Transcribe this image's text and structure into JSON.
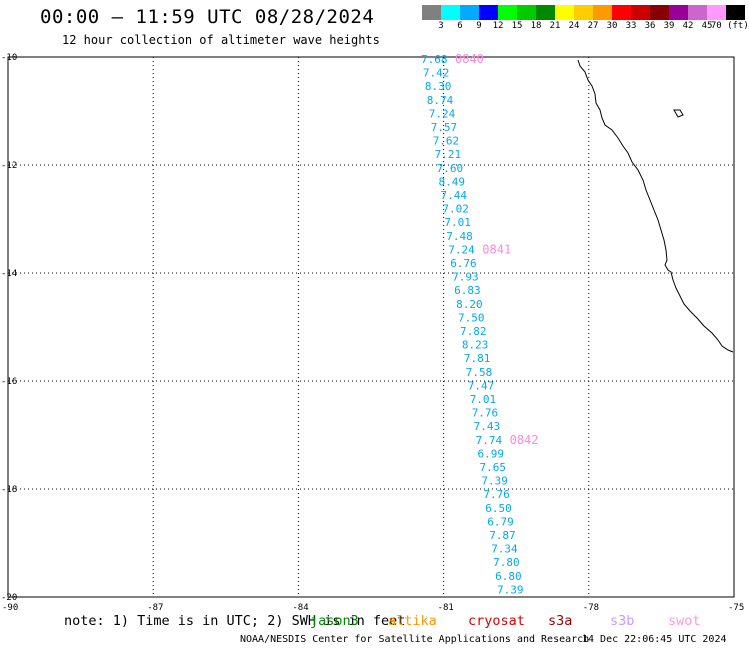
{
  "header": {
    "title": "00:00 – 11:59 UTC 08/28/2024",
    "subtitle": "12 hour collection of altimeter wave heights"
  },
  "legend": {
    "colors": [
      "#808080",
      "#00ffff",
      "#00aaff",
      "#0000ff",
      "#00ff00",
      "#00cc00",
      "#008800",
      "#ffff00",
      "#ffcc00",
      "#ff9900",
      "#ff0000",
      "#cc0000",
      "#880000",
      "#990099",
      "#cc66cc",
      "#ff99ff",
      "#000000"
    ],
    "labels": [
      "3",
      "6",
      "9",
      "12",
      "15",
      "18",
      "21",
      "24",
      "27",
      "30",
      "33",
      "36",
      "39",
      "42",
      "45",
      "70 (ft)"
    ]
  },
  "map": {
    "lon_range": [
      -90,
      -75
    ],
    "lat_range": [
      -20,
      -10
    ],
    "x_ticks": [
      "-90",
      "-87",
      "-84",
      "-81",
      "-78",
      "-75"
    ],
    "y_ticks": [
      "-10",
      "-12",
      "-14",
      "-16",
      "-18",
      "-20"
    ],
    "value_color": "#00aaee",
    "pass_color": "#ff88dd",
    "wave_heights": [
      "7.68",
      "7.42",
      "8.30",
      "8.74",
      "7.24",
      "7.57",
      "7.62",
      "7.21",
      "7.60",
      "8.49",
      "7.44",
      "7.02",
      "7.01",
      "7.48",
      "7.24",
      "6.76",
      "7.93",
      "6.83",
      "8.20",
      "7.50",
      "7.82",
      "8.23",
      "7.81",
      "7.58",
      "7.47",
      "7.01",
      "7.76",
      "7.43",
      "7.74",
      "6.99",
      "7.65",
      "7.39",
      "7.76",
      "6.50",
      "6.79",
      "7.87",
      "7.34",
      "7.80",
      "6.80",
      "7.39"
    ],
    "passes": [
      {
        "label": "0840",
        "at_index": 0
      },
      {
        "label": "0841",
        "at_index": 14
      },
      {
        "label": "0842",
        "at_index": 28
      }
    ]
  },
  "footer": {
    "note": "note: 1) Time is in UTC; 2) SWH is in feet",
    "satellites": [
      {
        "name": "jason3",
        "color": "#008800"
      },
      {
        "name": "altika",
        "color": "#ff9900"
      },
      {
        "name": "cryosat",
        "color": "#dd0000"
      },
      {
        "name": "s3a",
        "color": "#990000"
      },
      {
        "name": "s3b",
        "color": "#cc99ff"
      },
      {
        "name": "swot",
        "color": "#ff99dd"
      }
    ],
    "credit": "NOAA/NESDIS Center for Satellite Applications and Research",
    "timestamp": "14 Dec 22:06:45 UTC 2024"
  }
}
